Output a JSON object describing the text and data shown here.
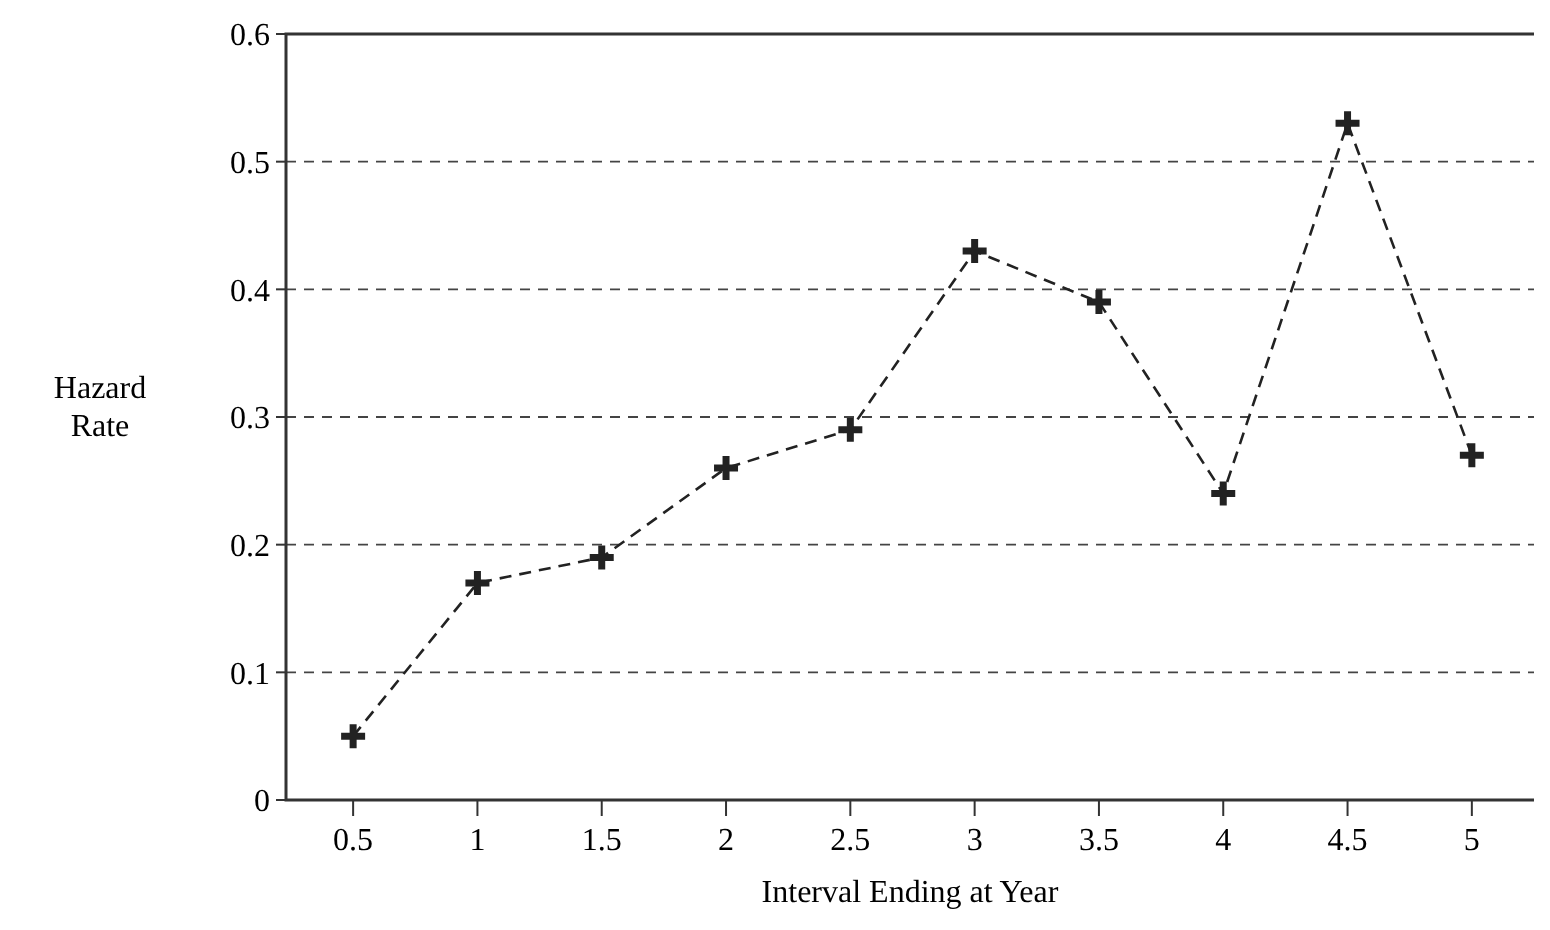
{
  "chart_data": {
    "type": "line",
    "xlabel": "Interval Ending at Year",
    "ylabel": "Hazard\nRate",
    "x": [
      0.5,
      1,
      1.5,
      2,
      2.5,
      3,
      3.5,
      4,
      4.5,
      5
    ],
    "series": [
      {
        "color": "#222222",
        "values": [
          0.05,
          0.17,
          0.19,
          0.26,
          0.29,
          0.43,
          0.39,
          0.24,
          0.53,
          0.27
        ]
      }
    ],
    "xlim": [
      0.23,
      5.25
    ],
    "ylim": [
      0,
      0.6
    ],
    "xticks": [
      0.5,
      1,
      1.5,
      2,
      2.5,
      3,
      3.5,
      4,
      4.5,
      5
    ],
    "yticks": [
      0,
      0.1,
      0.2,
      0.3,
      0.4,
      0.5,
      0.6
    ],
    "grid": "y",
    "marker": "cross",
    "line_style": "dashed"
  }
}
